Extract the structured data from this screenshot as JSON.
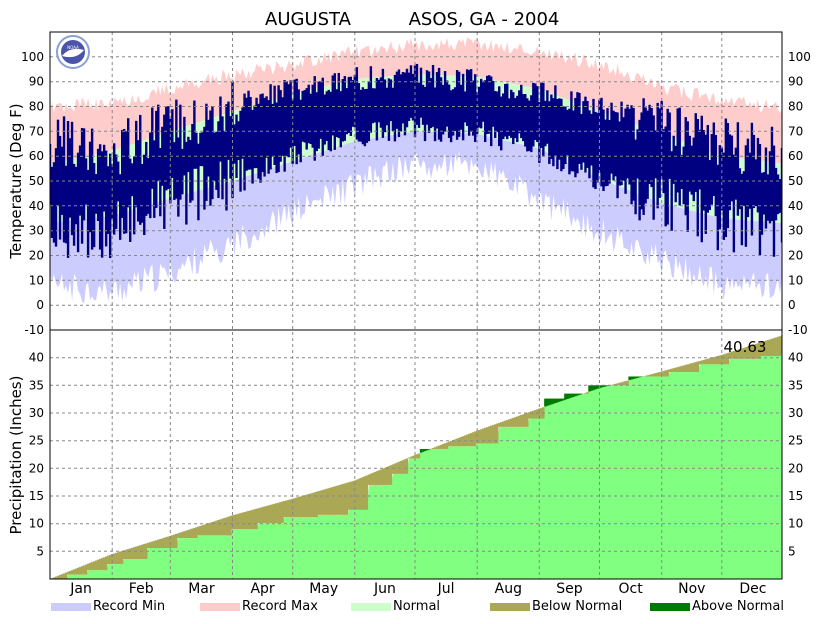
{
  "title": {
    "station": "AUGUSTA",
    "network": "ASOS, GA - 2004"
  },
  "logo": {
    "text": "NOAA"
  },
  "colors": {
    "record_min": "#ccccff",
    "record_max": "#ffcccc",
    "normal": "#ccffcc",
    "observed": "#000080",
    "below_normal": "#aaa855",
    "above_normal": "#007a00",
    "precip_observed": "#80ff80",
    "grid": "#888888"
  },
  "legend": [
    {
      "label": "Record Min",
      "color": "#ccccff"
    },
    {
      "label": "Record Max",
      "color": "#ffcccc"
    },
    {
      "label": "Normal",
      "color": "#ccffcc"
    },
    {
      "label": "Below Normal",
      "color": "#aaa855"
    },
    {
      "label": "Above Normal",
      "color": "#007a00"
    }
  ],
  "chart_data": [
    {
      "type": "area",
      "panel": "temperature",
      "ylabel": "Temperature (Deg F)",
      "ylim": [
        -10,
        110
      ],
      "yticks": [
        0,
        10,
        20,
        30,
        40,
        50,
        60,
        70,
        80,
        90,
        100
      ],
      "x_months": [
        "Jan",
        "Feb",
        "Mar",
        "Apr",
        "May",
        "Jun",
        "Jul",
        "Aug",
        "Sep",
        "Oct",
        "Nov",
        "Dec"
      ],
      "month_start_day": [
        1,
        32,
        61,
        92,
        122,
        153,
        183,
        214,
        245,
        275,
        306,
        336
      ],
      "days_in_year": 366,
      "grid": true,
      "series": [
        {
          "name": "Record Max",
          "x_day": [
            1,
            32,
            61,
            92,
            122,
            153,
            183,
            214,
            245,
            275,
            306,
            336,
            366
          ],
          "values": [
            80,
            81,
            87,
            93,
            97,
            102,
            105,
            105,
            102,
            97,
            88,
            82,
            80
          ]
        },
        {
          "name": "Record Min",
          "x_day": [
            1,
            32,
            61,
            92,
            122,
            153,
            183,
            214,
            245,
            275,
            306,
            336,
            366
          ],
          "values": [
            8,
            5,
            13,
            25,
            37,
            48,
            57,
            56,
            42,
            30,
            18,
            8,
            8
          ]
        },
        {
          "name": "Normal",
          "normal_high": [
            57,
            62,
            70,
            78,
            85,
            91,
            93,
            92,
            87,
            78,
            69,
            60,
            57
          ],
          "normal_low": [
            33,
            36,
            43,
            50,
            58,
            66,
            70,
            69,
            63,
            51,
            41,
            35,
            33
          ],
          "x_day": [
            1,
            32,
            61,
            92,
            122,
            153,
            183,
            214,
            245,
            275,
            306,
            336,
            366
          ]
        },
        {
          "name": "Observed",
          "x_day": [
            1,
            32,
            61,
            92,
            122,
            153,
            183,
            214,
            245,
            275,
            306,
            336,
            366
          ],
          "high": [
            66,
            62,
            72,
            80,
            87,
            91,
            93,
            90,
            86,
            80,
            72,
            65,
            60
          ],
          "low": [
            30,
            30,
            42,
            48,
            60,
            68,
            71,
            70,
            62,
            50,
            42,
            32,
            30
          ]
        }
      ]
    },
    {
      "type": "area",
      "panel": "precipitation",
      "ylabel": "Precipitation (Inches)",
      "ylim": [
        0,
        45
      ],
      "yticks": [
        5,
        10,
        15,
        20,
        25,
        30,
        35,
        40
      ],
      "x_months": [
        "Jan",
        "Feb",
        "Mar",
        "Apr",
        "May",
        "Jun",
        "Jul",
        "Aug",
        "Sep",
        "Oct",
        "Nov",
        "Dec"
      ],
      "total_label": "40.63",
      "grid": true,
      "series": [
        {
          "name": "Normal",
          "x_day": [
            1,
            32,
            61,
            92,
            122,
            153,
            183,
            214,
            245,
            275,
            306,
            336,
            366
          ],
          "values": [
            0,
            4.5,
            7.8,
            11.5,
            14.5,
            17.8,
            22.4,
            26.8,
            30.8,
            34.5,
            37.5,
            40.5,
            44.0
          ]
        },
        {
          "name": "Observed",
          "steps": [
            [
              1,
              0
            ],
            [
              10,
              0.8
            ],
            [
              20,
              1.6
            ],
            [
              30,
              2.7
            ],
            [
              38,
              3.6
            ],
            [
              50,
              5.6
            ],
            [
              65,
              7.4
            ],
            [
              75,
              7.9
            ],
            [
              92,
              9.0
            ],
            [
              105,
              10.1
            ],
            [
              118,
              11.2
            ],
            [
              135,
              11.6
            ],
            [
              150,
              12.5
            ],
            [
              160,
              17.0
            ],
            [
              172,
              19.0
            ],
            [
              180,
              21.8
            ],
            [
              186,
              23.5
            ],
            [
              200,
              24.0
            ],
            [
              214,
              24.5
            ],
            [
              225,
              27.5
            ],
            [
              240,
              29.0
            ],
            [
              248,
              32.6
            ],
            [
              258,
              33.5
            ],
            [
              270,
              35.0
            ],
            [
              290,
              36.6
            ],
            [
              310,
              37.4
            ],
            [
              325,
              38.8
            ],
            [
              340,
              39.8
            ],
            [
              356,
              40.3
            ],
            [
              366,
              40.63
            ]
          ]
        }
      ]
    }
  ]
}
